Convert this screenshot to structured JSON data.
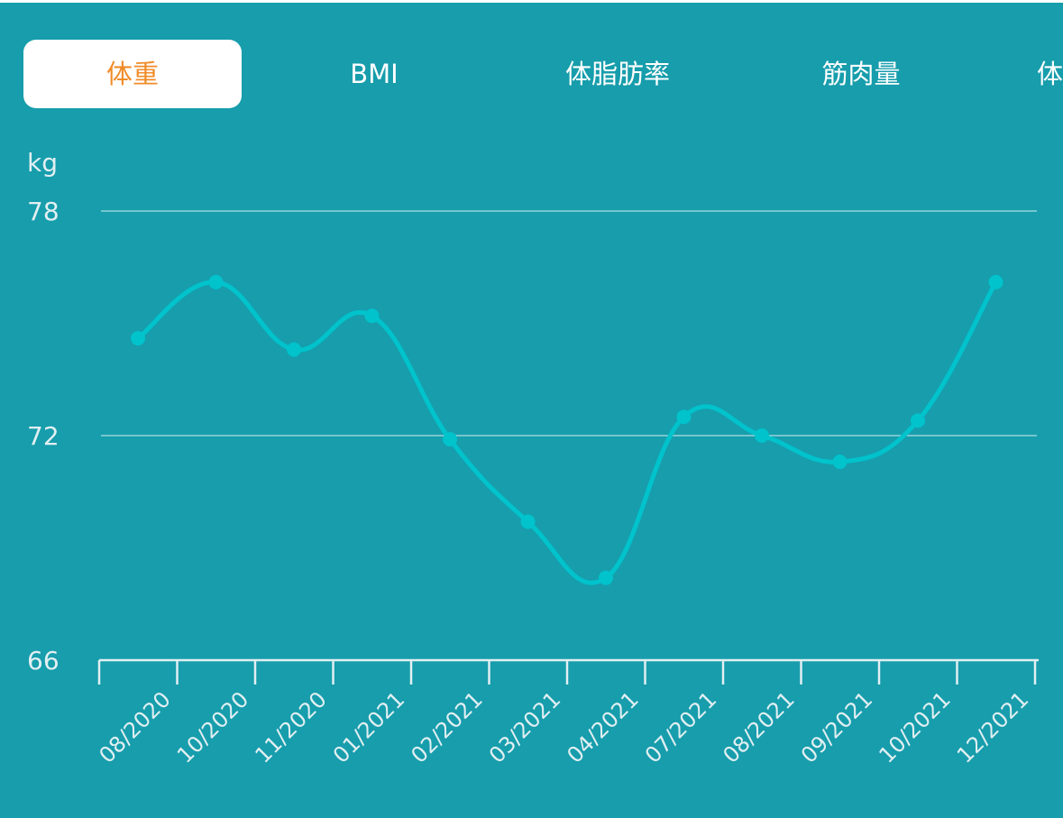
{
  "tabs": [
    {
      "label": "体重",
      "active": true
    },
    {
      "label": "BMI",
      "active": false
    },
    {
      "label": "体脂肪率",
      "active": false
    },
    {
      "label": "筋肉量",
      "active": false
    },
    {
      "label": "体",
      "active": false
    }
  ],
  "colors": {
    "background": "#179DAC",
    "line": "#00C3CC",
    "active_tab_text": "#F08C28",
    "axis": "#E1EFF2"
  },
  "chart_data": {
    "type": "line",
    "ylabel": "kg",
    "ylim": [
      66,
      78
    ],
    "yticks": [
      "66",
      "72",
      "78"
    ],
    "grid": true,
    "categories": [
      "08/2020",
      "10/2020",
      "11/2020",
      "01/2021",
      "02/2021",
      "03/2021",
      "04/2021",
      "07/2021",
      "08/2021",
      "09/2021",
      "10/2021",
      "12/2021"
    ],
    "values": [
      74.6,
      76.1,
      74.3,
      75.2,
      71.9,
      69.7,
      68.2,
      72.5,
      72.0,
      71.3,
      72.4,
      76.1
    ]
  }
}
